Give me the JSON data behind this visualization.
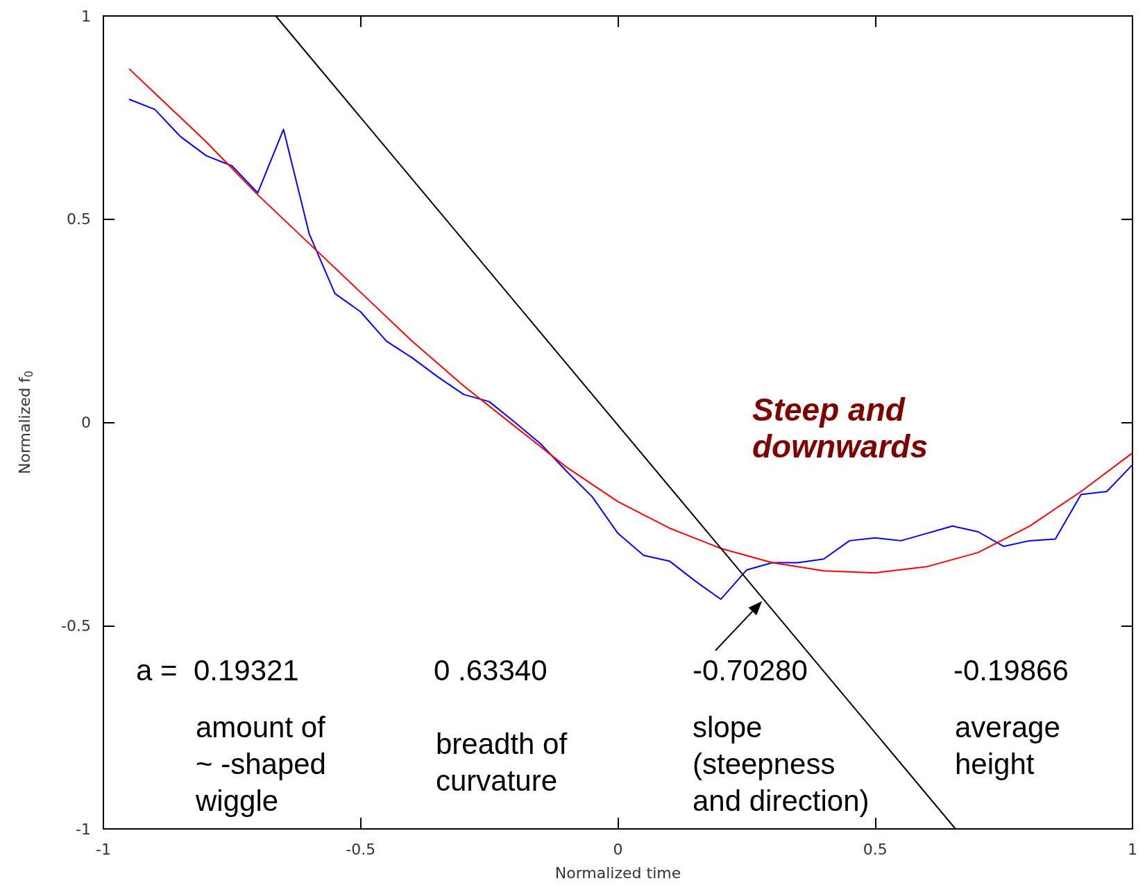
{
  "chart_data": {
    "type": "line",
    "xlabel": "Normalized time",
    "ylabel": "Normalized f$_{0}$",
    "xlim": [
      -1,
      1
    ],
    "ylim": [
      -1,
      1
    ],
    "xticks": [
      -1,
      -0.5,
      0,
      0.5,
      1
    ],
    "yticks": [
      -1,
      -0.5,
      0,
      0.5,
      1
    ],
    "series": [
      {
        "color": "#0000ff",
        "x": [
          -0.95,
          -0.9,
          -0.85,
          -0.8,
          -0.75,
          -0.7,
          -0.65,
          -0.6,
          -0.55,
          -0.5,
          -0.45,
          -0.4,
          -0.35,
          -0.3,
          -0.25,
          -0.2,
          -0.15,
          -0.1,
          -0.05,
          0,
          0.05,
          0.1,
          0.15,
          0.2,
          0.25,
          0.3,
          0.35,
          0.4,
          0.45,
          0.5,
          0.55,
          0.6,
          0.65,
          0.7,
          0.75,
          0.8,
          0.85,
          0.9,
          0.95,
          1
        ],
        "values": [
          0.795,
          0.77,
          0.703,
          0.656,
          0.631,
          0.565,
          0.721,
          0.464,
          0.317,
          0.272,
          0.2,
          0.159,
          0.112,
          0.069,
          0.051,
          0,
          -0.053,
          -0.12,
          -0.183,
          -0.273,
          -0.327,
          -0.341,
          -0.39,
          -0.435,
          -0.363,
          -0.345,
          -0.345,
          -0.336,
          -0.291,
          -0.284,
          -0.291,
          -0.273,
          -0.255,
          -0.269,
          -0.305,
          -0.291,
          -0.287,
          -0.177,
          -0.17,
          -0.104
        ]
      },
      {
        "color": "#ff0000",
        "x": [
          -0.95,
          -0.9,
          -0.8,
          -0.7,
          -0.6,
          -0.5,
          -0.4,
          -0.3,
          -0.2,
          -0.1,
          0,
          0.1,
          0.2,
          0.3,
          0.4,
          0.5,
          0.6,
          0.7,
          0.8,
          0.9,
          1
        ],
        "values": [
          0.87,
          0.81,
          0.69,
          0.56,
          0.44,
          0.32,
          0.2,
          0.09,
          -0.01,
          -0.11,
          -0.195,
          -0.26,
          -0.31,
          -0.345,
          -0.365,
          -0.37,
          -0.355,
          -0.32,
          -0.255,
          -0.17,
          -0.075
        ]
      },
      {
        "color": "#000000",
        "x": [
          -0.665,
          0.656
        ],
        "values": [
          1,
          -1
        ]
      }
    ],
    "annotations": [
      "Steep and\ndownwards",
      "a =  0.19321",
      "0 .63340",
      {
        "text": "-0.70280",
        "x": 0.28,
        "y": -0.44
      },
      "-0.19866",
      "amount of\n~ -shaped\nwiggle",
      "breadth of\ncurvature",
      "slope\n(steepness\nand direction)",
      "average\nheight"
    ]
  }
}
